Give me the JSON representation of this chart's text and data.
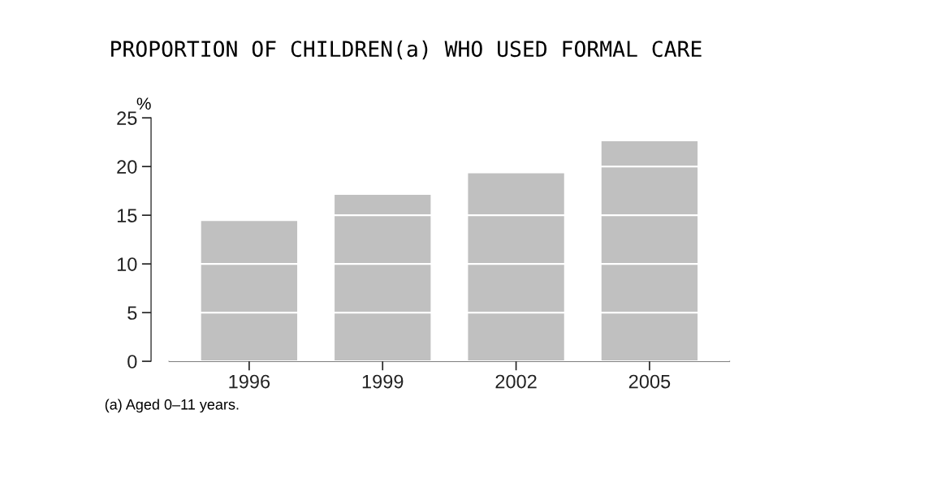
{
  "chart_data": {
    "type": "bar",
    "title": "PROPORTION OF CHILDREN(a) WHO USED FORMAL CARE",
    "ylabel": "%",
    "categories": [
      "1996",
      "1999",
      "2002",
      "2005"
    ],
    "values": [
      14.4,
      17.1,
      19.3,
      22.6
    ],
    "color": "#c0c0c0",
    "ylim": [
      0,
      25
    ],
    "yticks": [
      0,
      5,
      10,
      15,
      20,
      25
    ],
    "grid": "y",
    "annotations": [
      "(a) Aged 0–11 years."
    ]
  }
}
